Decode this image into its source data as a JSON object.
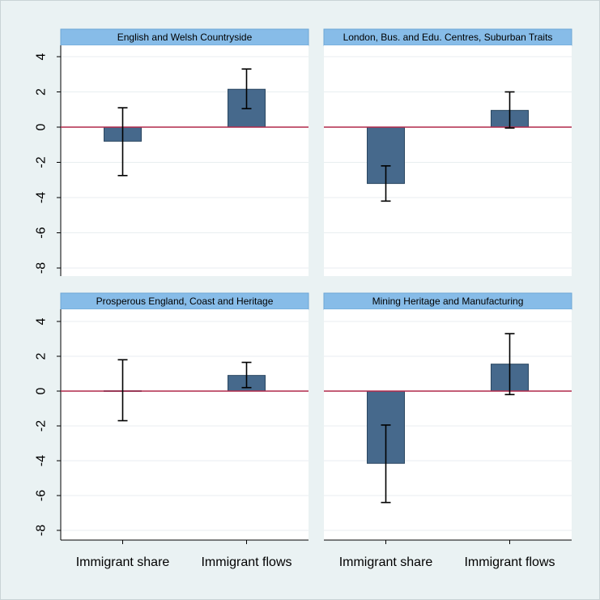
{
  "chart_data": {
    "type": "bar",
    "categories": [
      "Immigrant share",
      "Immigrant flows"
    ],
    "yticks": [
      4,
      2,
      0,
      -2,
      -4,
      -6,
      -8
    ],
    "ylim": [
      -8.6,
      4.6
    ],
    "grid": true,
    "colors": {
      "bar_fill": "#46698c",
      "bar_stroke": "#2a4660",
      "zero_line": "#b0284a",
      "title_strip": "#87bce8",
      "gridline": "#e8eef0",
      "frame_bg": "#eaf2f3",
      "plot_bg": "#ffffff"
    },
    "panels": [
      {
        "title": "English and Welsh Countryside",
        "values": [
          -0.8,
          2.15
        ],
        "ci_low": [
          -2.75,
          1.05
        ],
        "ci_high": [
          1.1,
          3.3
        ]
      },
      {
        "title": "London, Bus. and Edu. Centres, Suburban Traits",
        "values": [
          -3.2,
          0.95
        ],
        "ci_low": [
          -4.2,
          -0.05
        ],
        "ci_high": [
          -2.2,
          2.0
        ]
      },
      {
        "title": "Prosperous England, Coast and Heritage",
        "values": [
          0.02,
          0.9
        ],
        "ci_low": [
          -1.7,
          0.2
        ],
        "ci_high": [
          1.8,
          1.65
        ]
      },
      {
        "title": "Mining Heritage and Manufacturing",
        "values": [
          -4.15,
          1.55
        ],
        "ci_low": [
          -6.4,
          -0.2
        ],
        "ci_high": [
          -1.95,
          3.3
        ]
      }
    ]
  }
}
